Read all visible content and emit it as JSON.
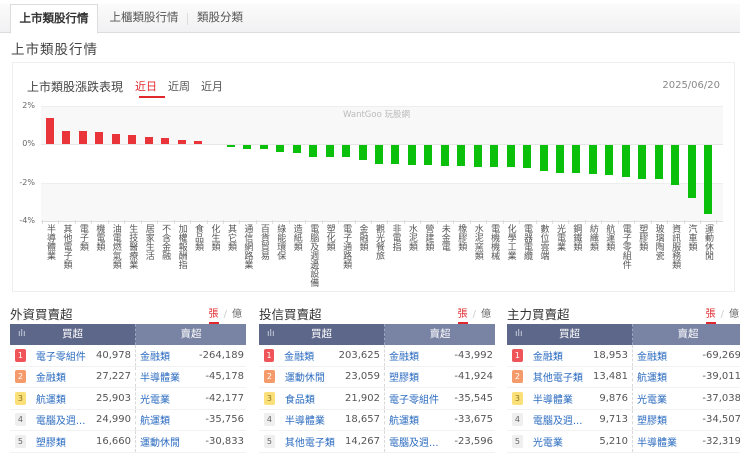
{
  "tabs": [
    {
      "label": "上市類股行情",
      "active": true
    },
    {
      "label": "上櫃類股行情",
      "active": false
    },
    {
      "label": "類股分類",
      "active": false
    }
  ],
  "page_title": "上市類股行情",
  "chart_panel": {
    "title": "上市類股漲跌表現",
    "range_tabs": [
      {
        "label": "近日",
        "active": true
      },
      {
        "label": "近周",
        "active": false
      },
      {
        "label": "近月",
        "active": false
      }
    ],
    "date": "2025/06/20",
    "watermark": "WantGoo 玩股網",
    "colors": {
      "up": "#e9343a",
      "down": "#0ac00a",
      "active_tab": "#e0282d"
    }
  },
  "chart_data": {
    "type": "bar",
    "title": "上市類股漲跌表現",
    "xlabel": "",
    "ylabel": "",
    "ylim": [
      -4,
      2
    ],
    "yticks": [
      "2%",
      "0%",
      "-2%",
      "-4%"
    ],
    "grid": true,
    "categories": [
      "半導體業",
      "其他電子類",
      "電子類",
      "機電類",
      "油電燃氣類",
      "生技醫療業",
      "居家生活",
      "不含金融",
      "加權報酬指",
      "食品類",
      "化生類",
      "其它類",
      "通信網路業",
      "百貨貿易",
      "綠能環保",
      "造紙類",
      "電腦及週邊設備",
      "塑化類",
      "電子通路類",
      "金融類",
      "觀光餐旅",
      "非電指",
      "水泥類",
      "營建類",
      "未金電",
      "橡膠類",
      "水泥窯類",
      "電機機械",
      "化學工業",
      "電器電纜",
      "數位雲端",
      "光電業",
      "鋼鐵類",
      "紡織類",
      "航運類",
      "電子零組件",
      "塑膠類",
      "玻璃陶瓷",
      "資訊服務類",
      "汽車類",
      "運動休閒"
    ],
    "values": [
      1.34,
      0.68,
      0.68,
      0.61,
      0.52,
      0.48,
      0.36,
      0.3,
      0.21,
      0.17,
      0.0,
      -0.11,
      -0.23,
      -0.23,
      -0.34,
      -0.4,
      -0.6,
      -0.6,
      -0.63,
      -0.8,
      -0.98,
      -0.98,
      -1.03,
      -1.06,
      -1.08,
      -1.08,
      -1.12,
      -1.13,
      -1.14,
      -1.18,
      -1.37,
      -1.48,
      -1.48,
      -1.53,
      -1.56,
      -1.65,
      -1.75,
      -1.79,
      -2.08,
      -2.78,
      -3.58
    ]
  },
  "tables": [
    {
      "title": "外資買賣超",
      "units": {
        "on": "張",
        "off": "億"
      },
      "header": {
        "buy": "買超",
        "sell": "賣超"
      },
      "rows": [
        {
          "rank": "1",
          "buy_name": "電子零組件",
          "buy_value": "40,978",
          "sell_name": "金融類",
          "sell_value": "-264,189"
        },
        {
          "rank": "2",
          "buy_name": "金融類",
          "buy_value": "27,227",
          "sell_name": "半導體業",
          "sell_value": "-45,178"
        },
        {
          "rank": "3",
          "buy_name": "航運類",
          "buy_value": "25,903",
          "sell_name": "光電業",
          "sell_value": "-42,177"
        },
        {
          "rank": "4",
          "buy_name": "電腦及週...",
          "buy_value": "24,990",
          "sell_name": "航運類",
          "sell_value": "-35,756"
        },
        {
          "rank": "5",
          "buy_name": "塑膠類",
          "buy_value": "16,660",
          "sell_name": "運動休閒",
          "sell_value": "-30,833"
        }
      ]
    },
    {
      "title": "投信買賣超",
      "units": {
        "on": "張",
        "off": "億"
      },
      "header": {
        "buy": "買超",
        "sell": "賣超"
      },
      "rows": [
        {
          "rank": "1",
          "buy_name": "金融類",
          "buy_value": "203,625",
          "sell_name": "金融類",
          "sell_value": "-43,992"
        },
        {
          "rank": "2",
          "buy_name": "運動休閒",
          "buy_value": "23,059",
          "sell_name": "塑膠類",
          "sell_value": "-41,924"
        },
        {
          "rank": "3",
          "buy_name": "食品類",
          "buy_value": "21,902",
          "sell_name": "電子零組件",
          "sell_value": "-35,545"
        },
        {
          "rank": "4",
          "buy_name": "半導體業",
          "buy_value": "18,657",
          "sell_name": "航運類",
          "sell_value": "-33,675"
        },
        {
          "rank": "5",
          "buy_name": "其他電子類",
          "buy_value": "14,267",
          "sell_name": "電腦及週...",
          "sell_value": "-23,596"
        }
      ]
    },
    {
      "title": "主力買賣超",
      "units": {
        "on": "張",
        "off": "億"
      },
      "header": {
        "buy": "買超",
        "sell": "賣超"
      },
      "rows": [
        {
          "rank": "1",
          "buy_name": "金融類",
          "buy_value": "18,953",
          "sell_name": "金融類",
          "sell_value": "-69,269"
        },
        {
          "rank": "2",
          "buy_name": "其他電子類",
          "buy_value": "13,481",
          "sell_name": "航運類",
          "sell_value": "-39,011"
        },
        {
          "rank": "3",
          "buy_name": "半導體業",
          "buy_value": "9,876",
          "sell_name": "光電業",
          "sell_value": "-37,038"
        },
        {
          "rank": "4",
          "buy_name": "電腦及週...",
          "buy_value": "9,713",
          "sell_name": "塑膠類",
          "sell_value": "-34,507"
        },
        {
          "rank": "5",
          "buy_name": "光電業",
          "buy_value": "5,210",
          "sell_name": "半導體業",
          "sell_value": "-32,319"
        }
      ]
    }
  ]
}
